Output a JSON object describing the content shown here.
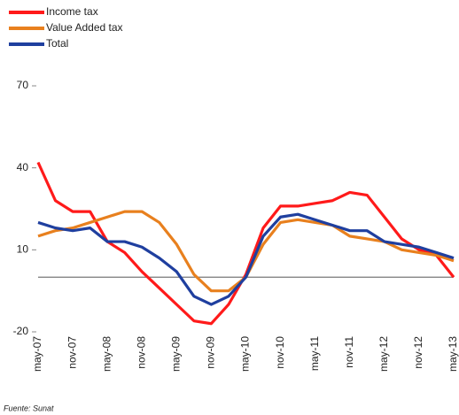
{
  "chart_data": {
    "type": "line",
    "categories": [
      "may-07",
      null,
      "nov-07",
      null,
      "may-08",
      null,
      "nov-08",
      null,
      "may-09",
      null,
      "nov-09",
      null,
      "may-10",
      null,
      "nov-10",
      null,
      "may-11",
      null,
      "nov-11",
      null,
      "may-12",
      null,
      "nov-12",
      null,
      "may-13"
    ],
    "series": [
      {
        "name": "Income tax",
        "color": "#ff1a1a",
        "values": [
          42,
          28,
          24,
          24,
          13,
          9,
          2,
          -4,
          -10,
          -16,
          -17,
          -10,
          1,
          18,
          26,
          26,
          27,
          28,
          31,
          30,
          22,
          14,
          10,
          8,
          0
        ]
      },
      {
        "name": "Value Added tax",
        "color": "#e8801e",
        "values": [
          15,
          17,
          18,
          20,
          22,
          24,
          24,
          20,
          12,
          1,
          -5,
          -5,
          0,
          12,
          20,
          21,
          20,
          19,
          15,
          14,
          13,
          10,
          9,
          8,
          6
        ]
      },
      {
        "name": "Total",
        "color": "#1f3f9f",
        "values": [
          20,
          18,
          17,
          18,
          13,
          13,
          11,
          7,
          2,
          -7,
          -10,
          -7,
          0,
          15,
          22,
          23,
          21,
          19,
          17,
          17,
          13,
          12,
          11,
          9,
          7
        ]
      }
    ],
    "ylim": [
      -20,
      70
    ],
    "yticks": [
      -20,
      10,
      40,
      70
    ],
    "note": "Fuente: Sunat"
  }
}
